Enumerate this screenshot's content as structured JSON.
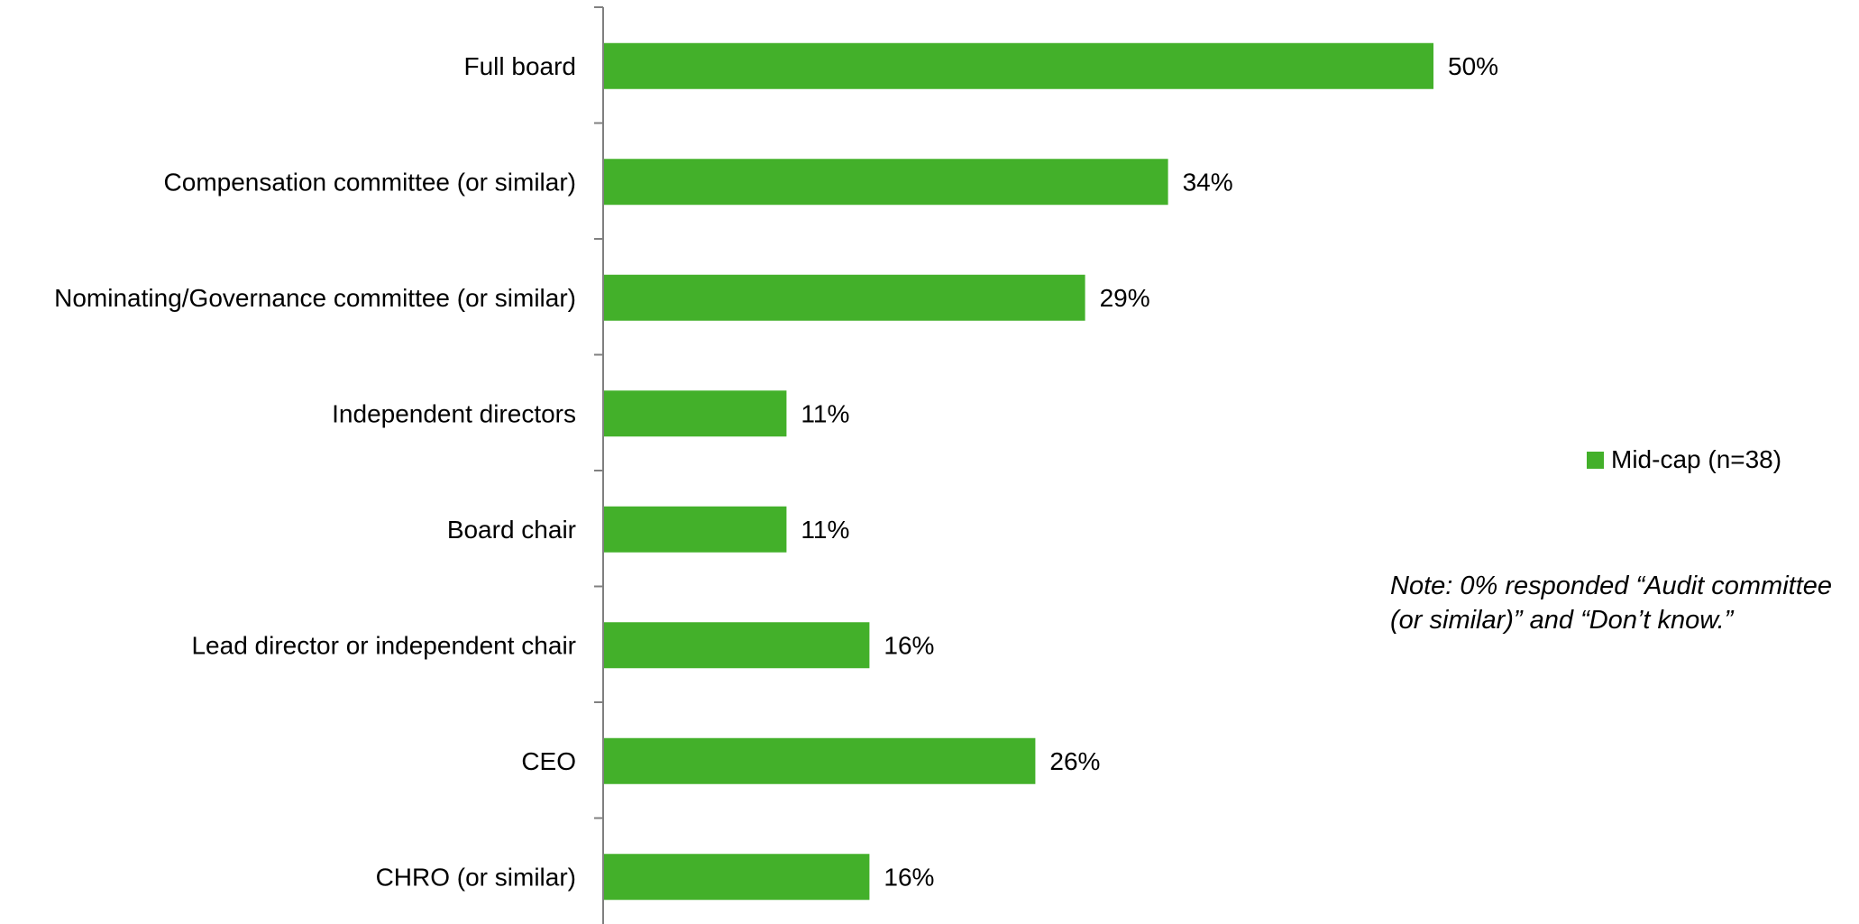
{
  "chart_data": {
    "type": "bar",
    "orientation": "horizontal",
    "categories": [
      "Full board",
      "Compensation committee (or similar)",
      "Nominating/Governance committee (or similar)",
      "Independent directors",
      "Board chair",
      "Lead director or independent chair",
      "CEO",
      "CHRO (or similar)"
    ],
    "series": [
      {
        "name": "Mid-cap (n=38)",
        "values": [
          50,
          34,
          29,
          11,
          11,
          16,
          26,
          16
        ],
        "labels": [
          "50%",
          "34%",
          "29%",
          "11%",
          "11%",
          "16%",
          "26%",
          "16%"
        ],
        "color": "#43b02a"
      }
    ],
    "xlim": [
      0,
      75
    ],
    "grid": false,
    "legend_position": "right",
    "annotations": [
      "Note: 0% responded “Audit committee",
      "(or similar)” and “Don’t know.”"
    ]
  }
}
